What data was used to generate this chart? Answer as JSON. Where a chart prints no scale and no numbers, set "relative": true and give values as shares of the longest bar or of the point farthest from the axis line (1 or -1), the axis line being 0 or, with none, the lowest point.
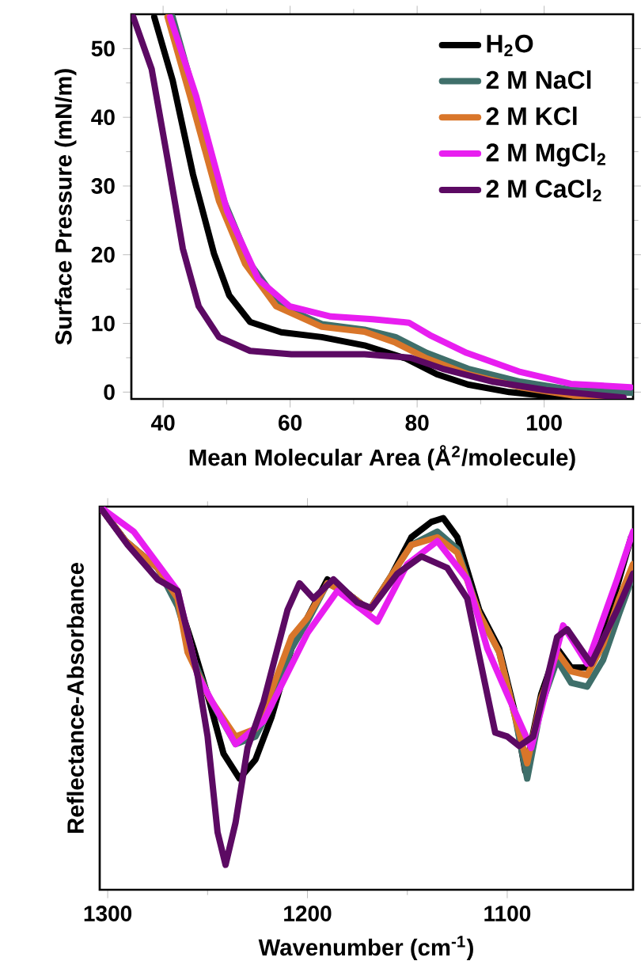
{
  "chart_data": [
    {
      "type": "line",
      "xlabel": "Mean Molecular Area (Å$^{2}$/molecule)",
      "ylabel": "Surface Pressure (mN/m)",
      "xlim": [
        35,
        114
      ],
      "ylim": [
        -1,
        55
      ],
      "xticks": [
        40,
        60,
        80,
        100
      ],
      "yticks": [
        0,
        10,
        20,
        30,
        40,
        50
      ],
      "legend": "top right",
      "series": [
        {
          "name": "H$_{2}$O",
          "color": "#000000",
          "x": [
            38.6,
            41.5,
            44.7,
            48,
            50.4,
            53.7,
            58.6,
            65,
            71.7,
            78.2,
            83.1,
            88,
            94.5,
            100,
            106
          ],
          "values": [
            54.6,
            45.4,
            31.7,
            20.2,
            14.1,
            10.2,
            8.7,
            8,
            6.8,
            4.9,
            2.6,
            1.1,
            0,
            -0.5,
            -0.8
          ]
        },
        {
          "name": "2 M NaCl",
          "color": "#3f6f6a",
          "x": [
            41.5,
            45.5,
            49.6,
            53.7,
            58.6,
            65,
            71.7,
            76.6,
            81.5,
            88,
            96.3,
            104.5,
            113.8
          ],
          "values": [
            54.6,
            null,
            27.8,
            18.7,
            12.5,
            9.9,
            9.1,
            8,
            5.7,
            3.4,
            1.5,
            0.3,
            -0.1
          ]
        },
        {
          "name": "2 M KCl",
          "color": "#d9762a",
          "x": [
            40.7,
            44.7,
            48.8,
            52.9,
            57.8,
            65,
            71.7,
            76.6,
            81.5,
            88,
            96.3,
            104.5,
            110
          ],
          "values": [
            54.6,
            41.6,
            27.8,
            18.7,
            12.5,
            9.5,
            8.8,
            7.2,
            4.9,
            2.6,
            0.7,
            -0.5,
            -0.8
          ]
        },
        {
          "name": "2 M MgCl$_{2}$",
          "color": "#e81ef0",
          "x": [
            41.1,
            45.2,
            50.1,
            55,
            59.9,
            66.4,
            73,
            78.7,
            82,
            87.8,
            96,
            104.2,
            113.6
          ],
          "values": [
            54.6,
            43.1,
            26.3,
            16.4,
            12.5,
            11,
            10.6,
            10.1,
            8.3,
            5.7,
            3,
            1.2,
            0.7
          ]
        },
        {
          "name": "2 M CaCl$_{2}$",
          "color": "#5c0a63",
          "x": [
            35.3,
            38.2,
            40.7,
            43.1,
            45.6,
            48.8,
            53.7,
            60.2,
            71.7,
            79,
            84,
            92,
            100.3,
            112.5
          ],
          "values": [
            54.6,
            47,
            33.9,
            20.9,
            12.5,
            8,
            6,
            5.5,
            5.5,
            5,
            3.4,
            1.5,
            0.3,
            -0.8
          ]
        }
      ]
    },
    {
      "type": "line",
      "xlabel": "Wavenumber (cm$^{-1}$)",
      "ylabel": "Reflectance-Absorbance",
      "xlim": [
        1304,
        1037
      ],
      "xticks": [
        1300,
        1200,
        1100
      ],
      "relative": true,
      "legend": false,
      "series": [
        {
          "color": "#000000",
          "x": [
            1304,
            1291,
            1275,
            1265,
            1257,
            1249,
            1242,
            1234,
            1226,
            1218,
            1208,
            1200,
            1190,
            1179,
            1169,
            1158,
            1148,
            1138,
            1132,
            1125,
            1114,
            1104,
            1096,
            1091,
            1083,
            1075,
            1068,
            1060,
            1052,
            1044,
            1038
          ],
          "values": [
            1.0,
            0.91,
            0.84,
            0.76,
            0.63,
            0.49,
            0.355,
            0.29,
            0.34,
            0.45,
            0.63,
            0.71,
            0.81,
            0.77,
            0.73,
            0.82,
            0.92,
            0.96,
            0.97,
            0.92,
            0.73,
            0.63,
            0.46,
            0.31,
            0.51,
            0.63,
            0.58,
            0.58,
            0.67,
            0.81,
            0.92
          ]
        },
        {
          "color": "#3f6f6a",
          "x": [
            1304,
            1291,
            1275,
            1265,
            1257,
            1249,
            1236,
            1226,
            1218,
            1208,
            1200,
            1190,
            1179,
            1169,
            1158,
            1148,
            1135,
            1125,
            1114,
            1104,
            1096,
            1090,
            1083,
            1075,
            1068,
            1060,
            1052,
            1044,
            1037
          ],
          "values": [
            1.0,
            0.91,
            0.84,
            0.74,
            0.6,
            0.5,
            0.38,
            0.4,
            0.48,
            0.63,
            0.7,
            0.8,
            0.77,
            0.73,
            0.82,
            0.9,
            0.935,
            0.89,
            0.72,
            0.62,
            0.45,
            0.29,
            0.48,
            0.6,
            0.54,
            0.53,
            0.6,
            0.72,
            0.82
          ]
        },
        {
          "color": "#d9762a",
          "x": [
            1304,
            1291,
            1275,
            1265,
            1260,
            1249,
            1236,
            1226,
            1218,
            1208,
            1200,
            1190,
            1179,
            1169,
            1158,
            1148,
            1135,
            1125,
            1114,
            1104,
            1096,
            1090,
            1083,
            1075,
            1068,
            1060,
            1052,
            1044,
            1037
          ],
          "values": [
            1.0,
            0.91,
            0.84,
            0.76,
            0.62,
            0.5,
            0.4,
            0.42,
            0.52,
            0.66,
            0.71,
            0.8,
            0.77,
            0.73,
            0.82,
            0.9,
            0.92,
            0.88,
            0.72,
            0.62,
            0.45,
            0.33,
            0.5,
            0.62,
            0.57,
            0.56,
            0.64,
            0.76,
            0.85
          ]
        },
        {
          "color": "#e81ef0",
          "x": [
            1304,
            1287,
            1265,
            1255,
            1236,
            1222,
            1200,
            1185,
            1165,
            1150,
            1135,
            1120,
            1110,
            1100,
            1088,
            1072,
            1060,
            1045,
            1037
          ],
          "values": [
            1.0,
            0.935,
            0.78,
            0.56,
            0.38,
            0.44,
            0.67,
            0.78,
            0.7,
            0.85,
            0.91,
            0.81,
            0.63,
            0.51,
            0.37,
            0.69,
            0.59,
            0.81,
            0.935
          ]
        },
        {
          "color": "#5c0a63",
          "x": [
            1304,
            1290,
            1275,
            1265,
            1255,
            1250,
            1245,
            1241,
            1236,
            1230,
            1222,
            1210,
            1204,
            1197,
            1187,
            1175,
            1168,
            1155,
            1143,
            1130,
            1120,
            1112,
            1106,
            1100,
            1094,
            1087,
            1075,
            1070,
            1058,
            1045,
            1037
          ],
          "values": [
            1.0,
            0.9,
            0.81,
            0.78,
            0.56,
            0.4,
            0.15,
            0.065,
            0.175,
            0.37,
            0.49,
            0.73,
            0.8,
            0.76,
            0.81,
            0.75,
            0.735,
            0.825,
            0.87,
            0.84,
            0.76,
            0.56,
            0.41,
            0.4,
            0.375,
            0.4,
            0.66,
            0.68,
            0.59,
            0.73,
            0.825
          ]
        }
      ]
    }
  ]
}
